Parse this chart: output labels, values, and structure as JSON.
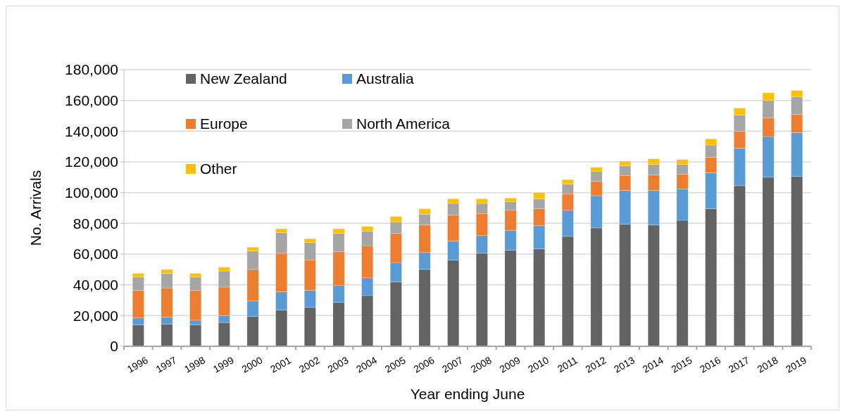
{
  "chart_data": {
    "type": "bar",
    "stacked": true,
    "xlabel": "Year ending June",
    "ylabel": "No. Arrivals",
    "categories": [
      "1996",
      "1997",
      "1998",
      "1999",
      "2000",
      "2001",
      "2002",
      "2003",
      "2004",
      "2005",
      "2006",
      "2007",
      "2008",
      "2009",
      "2010",
      "2011",
      "2012",
      "2013",
      "2014",
      "2015",
      "2016",
      "2017",
      "2018",
      "2019"
    ],
    "series": [
      {
        "name": "New Zealand",
        "color": "#636363",
        "values": [
          14000,
          14500,
          14000,
          15500,
          19500,
          23500,
          25500,
          28500,
          33000,
          42000,
          50000,
          56000,
          60500,
          62500,
          63500,
          71500,
          77000,
          79500,
          79000,
          82000,
          89500,
          104500,
          110000,
          110500
        ]
      },
      {
        "name": "Australia",
        "color": "#5b9bd5",
        "values": [
          4500,
          4500,
          3000,
          4500,
          10000,
          12000,
          11000,
          11000,
          11500,
          12500,
          11000,
          12500,
          11500,
          13000,
          15000,
          17000,
          21000,
          22000,
          22500,
          20500,
          23500,
          24500,
          26500,
          28500
        ]
      },
      {
        "name": "Europe",
        "color": "#ed7d31",
        "values": [
          18000,
          19000,
          19500,
          18500,
          20500,
          25000,
          19500,
          22000,
          21000,
          19000,
          18000,
          17000,
          14500,
          13000,
          11000,
          10500,
          9500,
          9500,
          10000,
          9500,
          10000,
          11000,
          12000,
          12000
        ]
      },
      {
        "name": "North America",
        "color": "#a5a5a5",
        "values": [
          8500,
          9500,
          8500,
          10500,
          12000,
          13500,
          11500,
          12000,
          9500,
          7500,
          7000,
          7500,
          6500,
          5500,
          6500,
          6500,
          6500,
          6500,
          7000,
          6500,
          8000,
          10500,
          11500,
          11500
        ]
      },
      {
        "name": "Other",
        "color": "#ffc000",
        "values": [
          2500,
          2500,
          2500,
          2500,
          2500,
          2500,
          2500,
          3000,
          3000,
          3500,
          3500,
          3000,
          3000,
          2500,
          4000,
          3000,
          2500,
          3000,
          3500,
          3000,
          4000,
          4500,
          5000,
          4000
        ]
      }
    ],
    "ylim": [
      0,
      180000
    ],
    "yticks": [
      {
        "value": 0,
        "label": "0"
      },
      {
        "value": 20000,
        "label": "20,000"
      },
      {
        "value": 40000,
        "label": "40,000"
      },
      {
        "value": 60000,
        "label": "60,000"
      },
      {
        "value": 80000,
        "label": "80,000"
      },
      {
        "value": 100000,
        "label": "100,000"
      },
      {
        "value": 120000,
        "label": "120,000"
      },
      {
        "value": 140000,
        "label": "140,000"
      },
      {
        "value": 160000,
        "label": "160,000"
      },
      {
        "value": 180000,
        "label": "180,000"
      }
    ],
    "grid": "y",
    "legend": "top left"
  }
}
